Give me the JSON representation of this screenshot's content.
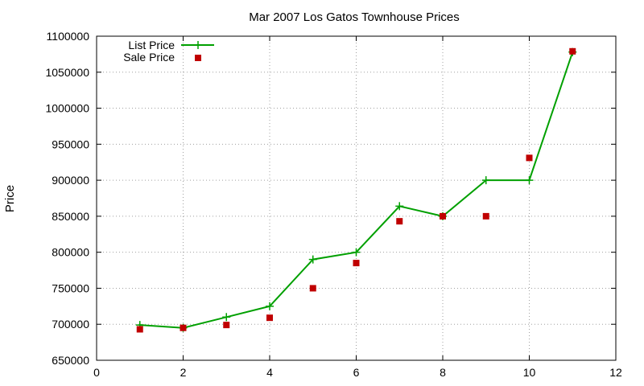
{
  "chart_data": {
    "type": "line",
    "title": "Mar 2007 Los Gatos Townhouse Prices",
    "xlabel": "",
    "ylabel": "Price",
    "xlim": [
      0,
      12
    ],
    "ylim": [
      650000,
      1100000
    ],
    "xticks": [
      0,
      2,
      4,
      6,
      8,
      10,
      12
    ],
    "yticks": [
      650000,
      700000,
      750000,
      800000,
      850000,
      900000,
      950000,
      1000000,
      1050000,
      1100000
    ],
    "grid": true,
    "legend_position": "top-left",
    "series": [
      {
        "name": "List Price",
        "style": "line-with-plus-markers",
        "color": "#00a000",
        "x": [
          1,
          2,
          3,
          4,
          5,
          6,
          7,
          8,
          9,
          10,
          11
        ],
        "y": [
          699000,
          695000,
          710000,
          725000,
          790000,
          800000,
          864000,
          850000,
          900000,
          900000,
          1078000
        ]
      },
      {
        "name": "Sale Price",
        "style": "square-markers",
        "color": "#c00000",
        "x": [
          1,
          2,
          3,
          4,
          5,
          6,
          7,
          8,
          9,
          10,
          11
        ],
        "y": [
          693000,
          695000,
          699000,
          709000,
          750000,
          785000,
          843000,
          850000,
          850000,
          931000,
          1079000
        ]
      }
    ]
  }
}
